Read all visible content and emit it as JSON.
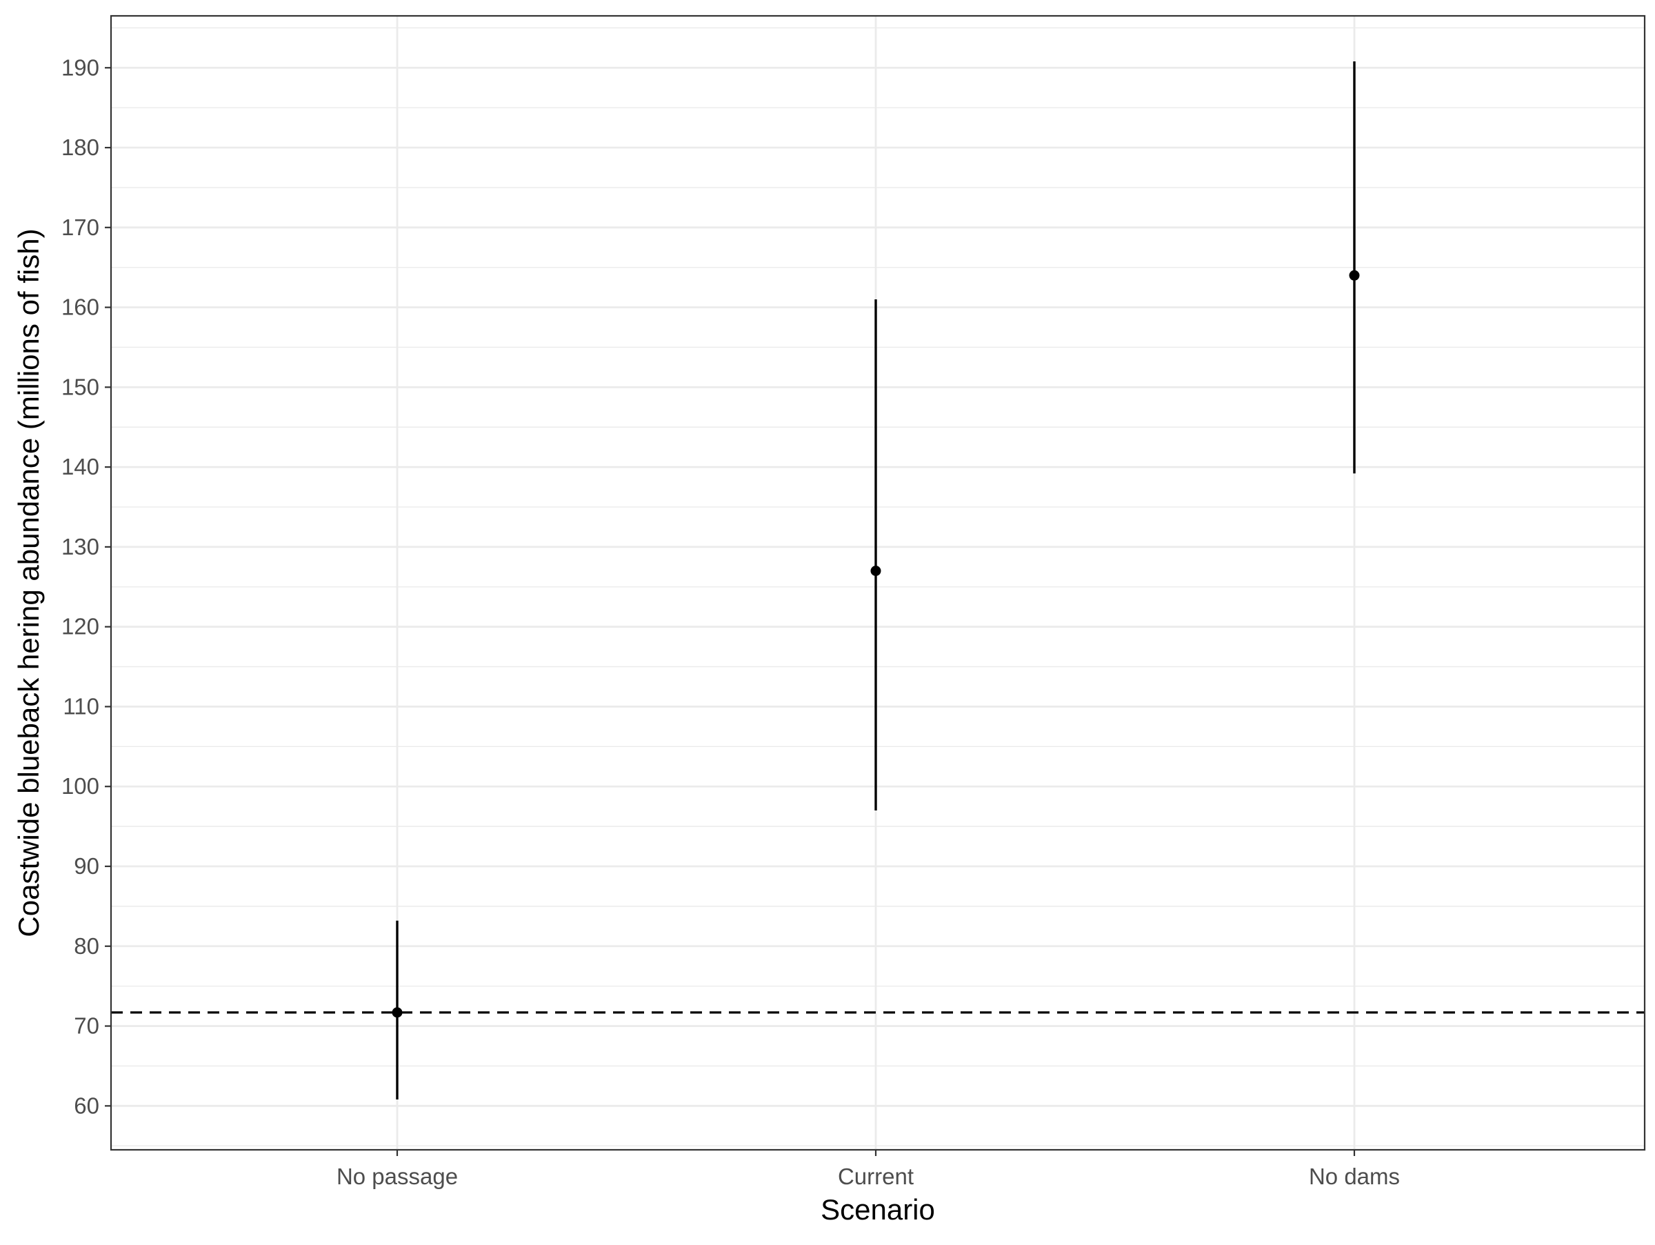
{
  "chart_data": {
    "type": "scatter",
    "subtype": "point-range",
    "xlabel": "Scenario",
    "ylabel": "Coastwide blueback hering abundance (millions of fish)",
    "categories": [
      "No passage",
      "Current",
      "No dams"
    ],
    "series": [
      {
        "points": [
          {
            "x": "No passage",
            "y": 71.7,
            "lower": 60.8,
            "upper": 83.2
          },
          {
            "x": "Current",
            "y": 127.0,
            "lower": 97.0,
            "upper": 161.0
          },
          {
            "x": "No dams",
            "y": 164.0,
            "lower": 139.2,
            "upper": 190.8
          }
        ]
      }
    ],
    "reference_line": {
      "y": 71.7,
      "style": "dashed"
    },
    "yticks": [
      60,
      70,
      80,
      90,
      100,
      110,
      120,
      130,
      140,
      150,
      160,
      170,
      180,
      190
    ],
    "ylim": [
      54.5,
      196.5
    ],
    "grid": true,
    "theme": "bw",
    "colors": {
      "points": "#000000",
      "grid": "#ebebeb",
      "panel_border": "#333333",
      "tick_text": "#4d4d4d"
    }
  }
}
